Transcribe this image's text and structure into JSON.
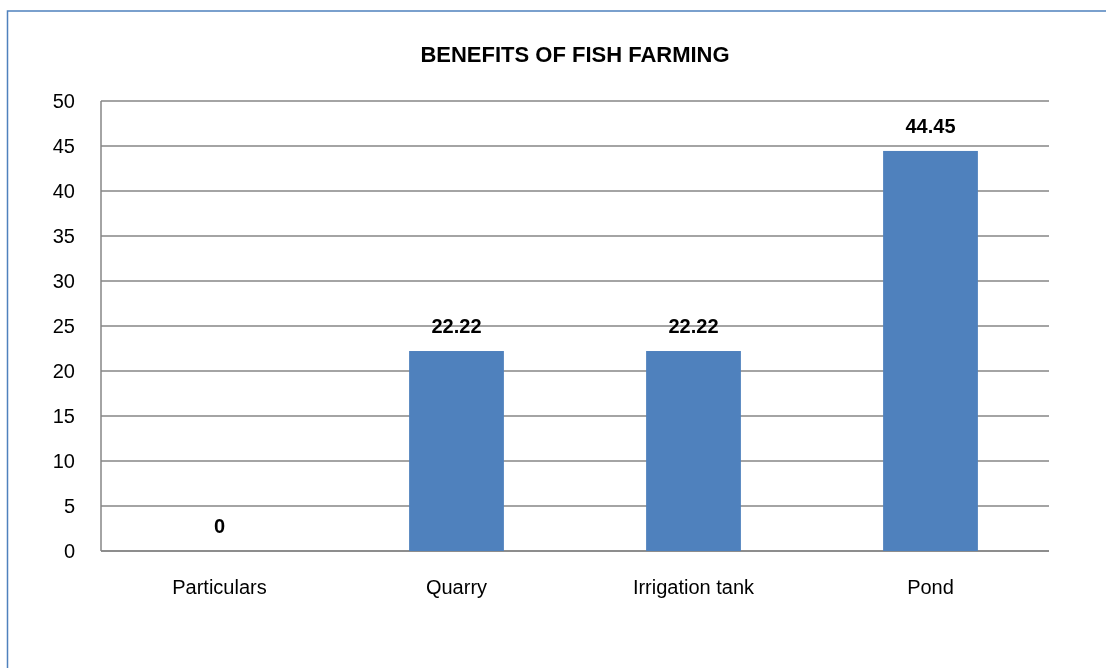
{
  "chart_data": {
    "type": "bar",
    "title": "BENEFITS OF FISH FARMING",
    "categories": [
      "Particulars",
      "Quarry",
      "Irrigation tank",
      "Pond"
    ],
    "values": [
      0,
      22.22,
      22.22,
      44.45
    ],
    "color": "#4f81bd",
    "ylim": [
      0,
      50
    ],
    "yticks": [
      0,
      5,
      10,
      15,
      20,
      25,
      30,
      35,
      40,
      45,
      50
    ],
    "grid": "y",
    "data_labels": true
  }
}
